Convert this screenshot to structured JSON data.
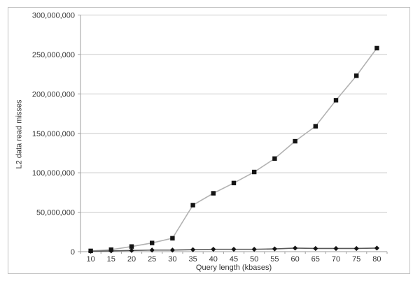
{
  "chart_data": {
    "type": "line",
    "title": "",
    "xlabel": "Query length (kbases)",
    "ylabel": "L2 data read misses",
    "categories": [
      "10",
      "15",
      "20",
      "25",
      "30",
      "35",
      "40",
      "45",
      "50",
      "55",
      "60",
      "65",
      "70",
      "75",
      "80"
    ],
    "ylim": [
      0,
      300000000
    ],
    "ytick_step": 50000000,
    "ytick_labels": [
      "0",
      "50,000,000",
      "100,000,000",
      "150,000,000",
      "200,000,000",
      "250,000,000",
      "300,000,000"
    ],
    "grid": "horizontal",
    "legend_position": "none",
    "series": [
      {
        "name": "square-marker-series",
        "marker": "square",
        "line_color": "#b2b2b2",
        "marker_color": "#141414",
        "values": [
          1000000,
          2500000,
          6500000,
          11000000,
          17000000,
          59000000,
          74000000,
          87000000,
          101000000,
          118000000,
          140000000,
          159000000,
          192000000,
          223000000,
          258000000
        ]
      },
      {
        "name": "diamond-marker-series",
        "marker": "diamond",
        "line_color": "#595959",
        "marker_color": "#141414",
        "values": [
          500000,
          1000000,
          1500000,
          2000000,
          2000000,
          2500000,
          3000000,
          3000000,
          3000000,
          3500000,
          4500000,
          4000000,
          4000000,
          4000000,
          4500000
        ]
      }
    ],
    "colors": {
      "gridline": "#c9c9c9",
      "axis": "#9e9e9e",
      "tick_text": "#333333",
      "frame_border": "#c0c0c0",
      "background": "#ffffff"
    }
  }
}
